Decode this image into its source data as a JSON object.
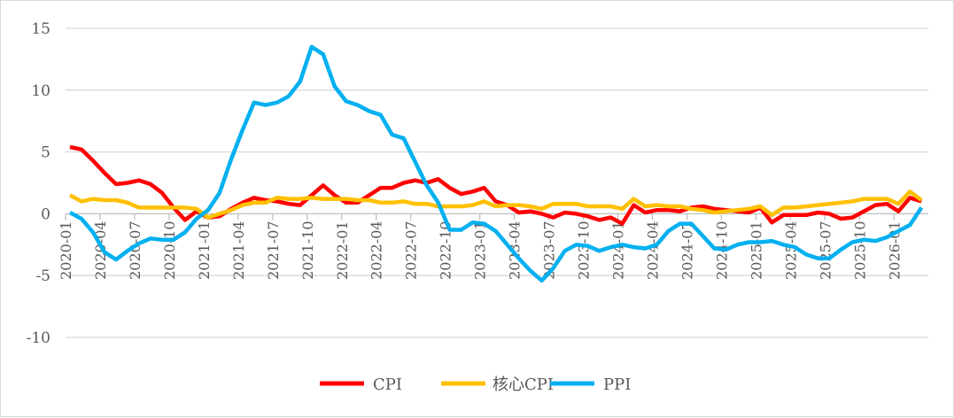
{
  "chart_data": {
    "type": "line",
    "title": "",
    "xlabel": "",
    "ylabel": "",
    "ylim": [
      -10,
      15
    ],
    "yticks": [
      15,
      10,
      5,
      0,
      -5,
      -10
    ],
    "grid": true,
    "legend_position": "bottom",
    "x": [
      "2020-01",
      "2020-02",
      "2020-03",
      "2020-04",
      "2020-05",
      "2020-06",
      "2020-07",
      "2020-08",
      "2020-09",
      "2020-10",
      "2020-11",
      "2020-12",
      "2021-01",
      "2021-02",
      "2021-03",
      "2021-04",
      "2021-05",
      "2021-06",
      "2021-07",
      "2021-08",
      "2021-09",
      "2021-10",
      "2021-11",
      "2021-12",
      "2022-01",
      "2022-02",
      "2022-03",
      "2022-04",
      "2022-05",
      "2022-06",
      "2022-07",
      "2022-08",
      "2022-09",
      "2022-10",
      "2022-11",
      "2022-12",
      "2023-01",
      "2023-02",
      "2023-03",
      "2023-04",
      "2023-05",
      "2023-06",
      "2023-07",
      "2023-08",
      "2023-09",
      "2023-10",
      "2023-11",
      "2023-12",
      "2024-01",
      "2024-02",
      "2024-03",
      "2024-04",
      "2024-05",
      "2024-06",
      "2024-07",
      "2024-08",
      "2024-09",
      "2024-10",
      "2024-11",
      "2024-12",
      "2025-01",
      "2025-02",
      "2025-03",
      "2025-04",
      "2025-05",
      "2025-06",
      "2025-07",
      "2025-08",
      "2025-09",
      "2025-10",
      "2025-11",
      "2025-12",
      "2026-01",
      "2026-02",
      "2026-03"
    ],
    "xtick_labels": [
      "2020-01",
      "2020-04",
      "2020-07",
      "2020-10",
      "2021-01",
      "2021-04",
      "2021-07",
      "2021-10",
      "2022-01",
      "2022-04",
      "2022-07",
      "2022-10",
      "2023-01",
      "2023-04",
      "2023-07",
      "2023-10",
      "2024-01",
      "2024-04",
      "2024-07",
      "2024-10",
      "2025-01",
      "2025-04",
      "2025-07",
      "2025-10",
      "2026-01"
    ],
    "series": [
      {
        "name": "CPI",
        "color": "#ff0000",
        "values": [
          5.4,
          5.2,
          4.3,
          3.3,
          2.4,
          2.5,
          2.7,
          2.4,
          1.7,
          0.5,
          -0.5,
          0.2,
          -0.3,
          -0.2,
          0.4,
          0.9,
          1.3,
          1.1,
          1.0,
          0.8,
          0.7,
          1.5,
          2.3,
          1.5,
          0.9,
          0.9,
          1.5,
          2.1,
          2.1,
          2.5,
          2.7,
          2.5,
          2.8,
          2.1,
          1.6,
          1.8,
          2.1,
          1.0,
          0.7,
          0.1,
          0.2,
          0.0,
          -0.3,
          0.1,
          0.0,
          -0.2,
          -0.5,
          -0.3,
          -0.8,
          0.7,
          0.1,
          0.3,
          0.3,
          0.2,
          0.5,
          0.6,
          0.4,
          0.3,
          0.2,
          0.1,
          0.5,
          -0.7,
          -0.1,
          -0.1,
          -0.1,
          0.1,
          0.0,
          -0.4,
          -0.3,
          0.2,
          0.7,
          0.8,
          0.2,
          1.3,
          1.0
        ]
      },
      {
        "name": "核心CPI",
        "color": "#ffc000",
        "values": [
          1.5,
          1.0,
          1.2,
          1.1,
          1.1,
          0.9,
          0.5,
          0.5,
          0.5,
          0.5,
          0.5,
          0.4,
          -0.3,
          0.0,
          0.3,
          0.7,
          0.9,
          0.9,
          1.3,
          1.2,
          1.2,
          1.3,
          1.2,
          1.2,
          1.2,
          1.1,
          1.1,
          0.9,
          0.9,
          1.0,
          0.8,
          0.8,
          0.6,
          0.6,
          0.6,
          0.7,
          1.0,
          0.6,
          0.7,
          0.7,
          0.6,
          0.4,
          0.8,
          0.8,
          0.8,
          0.6,
          0.6,
          0.6,
          0.4,
          1.2,
          0.6,
          0.7,
          0.6,
          0.6,
          0.4,
          0.3,
          0.1,
          0.2,
          0.3,
          0.4,
          0.6,
          -0.1,
          0.5,
          0.5,
          0.6,
          0.7,
          0.8,
          0.9,
          1.0,
          1.2,
          1.2,
          1.2,
          0.8,
          1.8,
          1.1
        ]
      },
      {
        "name": "PPI",
        "color": "#00b0f0",
        "values": [
          0.1,
          -0.4,
          -1.5,
          -3.1,
          -3.7,
          -3.0,
          -2.4,
          -2.0,
          -2.1,
          -2.1,
          -1.5,
          -0.4,
          0.3,
          1.7,
          4.4,
          6.8,
          9.0,
          8.8,
          9.0,
          9.5,
          10.7,
          13.5,
          12.9,
          10.3,
          9.1,
          8.8,
          8.3,
          8.0,
          6.4,
          6.1,
          4.2,
          2.3,
          0.9,
          -1.3,
          -1.3,
          -0.7,
          -0.8,
          -1.4,
          -2.5,
          -3.6,
          -4.6,
          -5.4,
          -4.4,
          -3.0,
          -2.5,
          -2.6,
          -3.0,
          -2.7,
          -2.5,
          -2.7,
          -2.8,
          -2.5,
          -1.4,
          -0.8,
          -0.8,
          -1.8,
          -2.8,
          -2.9,
          -2.5,
          -2.3,
          -2.3,
          -2.2,
          -2.5,
          -2.7,
          -3.3,
          -3.6,
          -3.6,
          -2.9,
          -2.3,
          -2.1,
          -2.2,
          -1.9,
          -1.4,
          -0.9,
          0.5
        ]
      }
    ]
  }
}
